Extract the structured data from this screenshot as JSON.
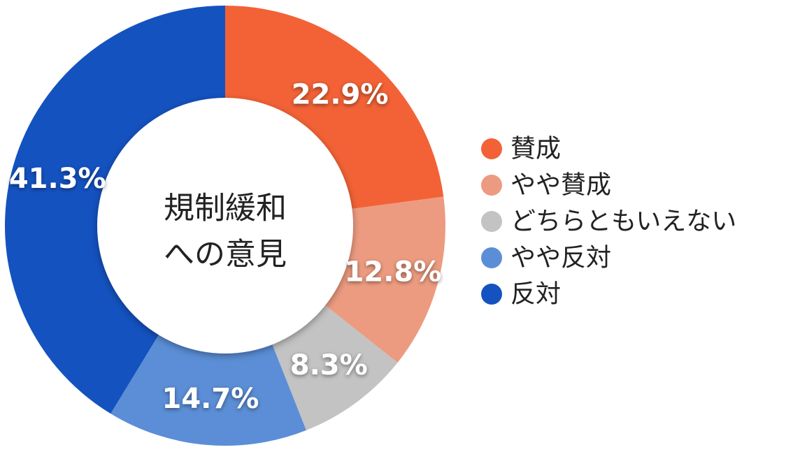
{
  "chart_data": {
    "type": "pie",
    "style": "donut",
    "center_label": [
      "規制緩和",
      "への意見"
    ],
    "categories": [
      "賛成",
      "やや賛成",
      "どちらともいえない",
      "やや反対",
      "反対"
    ],
    "values": [
      22.9,
      12.8,
      8.3,
      14.7,
      41.3
    ],
    "value_labels": [
      "22.9%",
      "12.8%",
      "8.3%",
      "14.7%",
      "41.3%"
    ],
    "colors": [
      "#F26236",
      "#EC9B80",
      "#C3C3C3",
      "#5B8ED6",
      "#1452C0"
    ],
    "start_angle": "top",
    "direction": "clockwise",
    "legend_position": "right"
  }
}
